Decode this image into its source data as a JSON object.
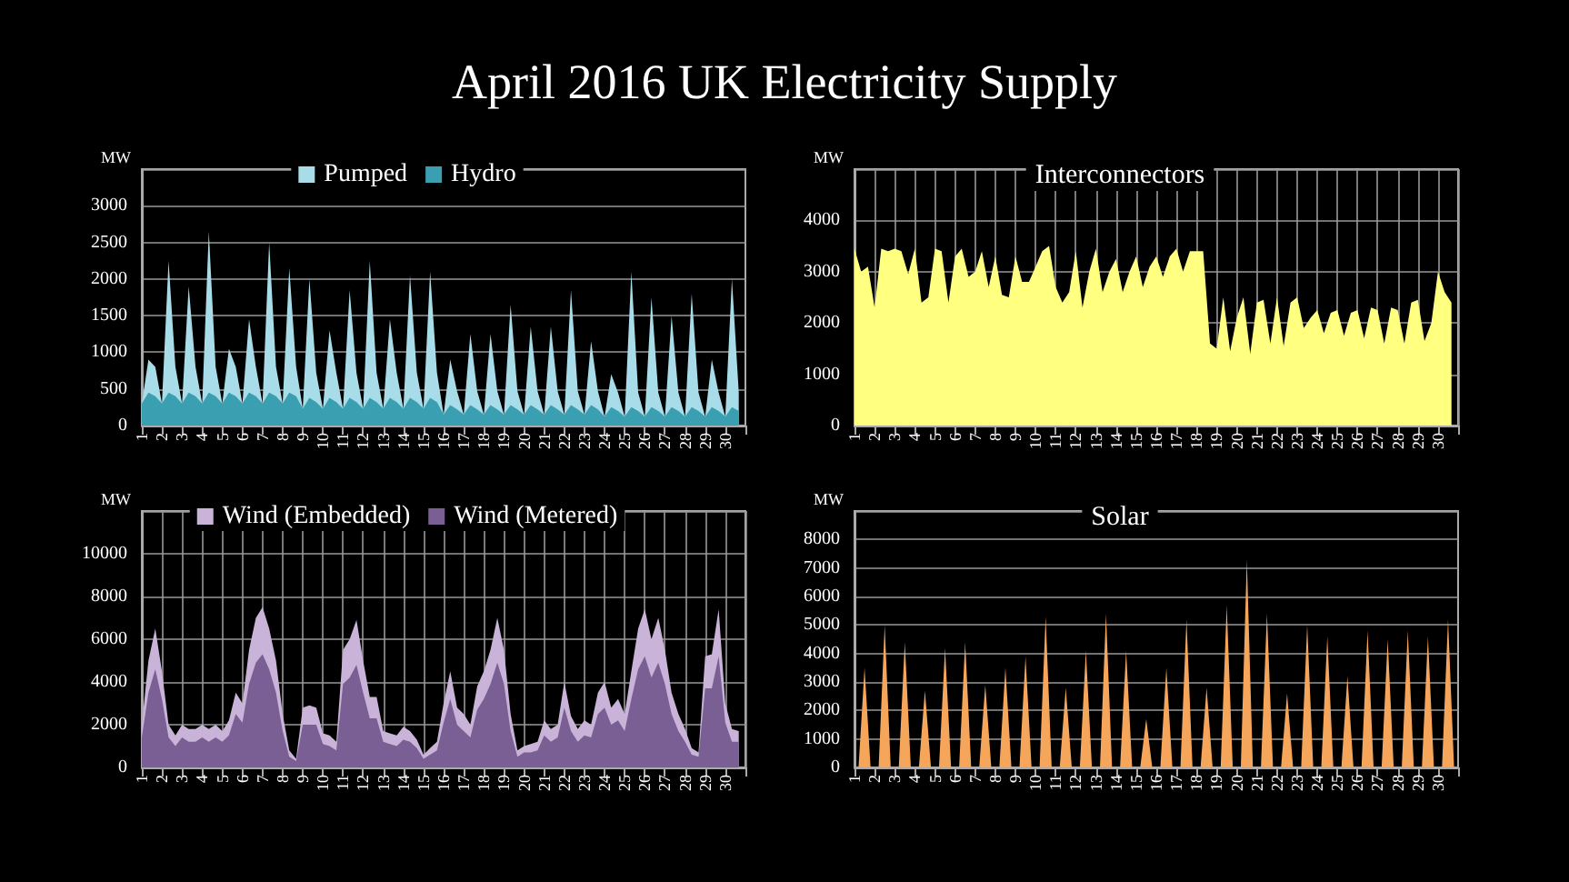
{
  "chart_data": [
    {
      "type": "other",
      "title": "April 2016 UK Electricity Supply"
    },
    {
      "type": "area",
      "ylabel": "MW",
      "stacked": true,
      "legend": "top",
      "grid": "y",
      "xlim": [
        1,
        31
      ],
      "xticks": [
        1,
        2,
        3,
        4,
        5,
        6,
        7,
        8,
        9,
        10,
        11,
        12,
        13,
        14,
        15,
        16,
        17,
        18,
        19,
        20,
        21,
        22,
        23,
        24,
        25,
        26,
        27,
        28,
        29,
        30
      ],
      "ylim": [
        0,
        3500
      ],
      "yticks": [
        0,
        500,
        1000,
        1500,
        2000,
        2500,
        3000
      ],
      "x": [
        1,
        1.33,
        1.67,
        2,
        2.33,
        2.67,
        3,
        3.33,
        3.67,
        4,
        4.33,
        4.67,
        5,
        5.33,
        5.67,
        6,
        6.33,
        6.67,
        7,
        7.33,
        7.67,
        8,
        8.33,
        8.67,
        9,
        9.33,
        9.67,
        10,
        10.33,
        10.67,
        11,
        11.33,
        11.67,
        12,
        12.33,
        12.67,
        13,
        13.33,
        13.67,
        14,
        14.33,
        14.67,
        15,
        15.33,
        15.67,
        16,
        16.33,
        16.67,
        17,
        17.33,
        17.67,
        18,
        18.33,
        18.67,
        19,
        19.33,
        19.67,
        20,
        20.33,
        20.67,
        21,
        21.33,
        21.67,
        22,
        22.33,
        22.67,
        23,
        23.33,
        23.67,
        24,
        24.33,
        24.67,
        25,
        25.33,
        25.67,
        26,
        26.33,
        26.67,
        27,
        27.33,
        27.67,
        28,
        28.33,
        28.67,
        29,
        29.33,
        29.67,
        30,
        30.33,
        30.67
      ],
      "series": [
        {
          "name": "Hydro",
          "color": "#3a9fb0",
          "values": [
            300,
            450,
            400,
            300,
            450,
            400,
            300,
            450,
            400,
            300,
            450,
            400,
            300,
            450,
            400,
            300,
            450,
            400,
            300,
            450,
            400,
            300,
            450,
            400,
            230,
            380,
            320,
            230,
            380,
            320,
            230,
            380,
            320,
            230,
            380,
            320,
            230,
            380,
            320,
            230,
            380,
            320,
            230,
            380,
            320,
            150,
            280,
            220,
            150,
            280,
            220,
            150,
            280,
            220,
            150,
            280,
            220,
            150,
            280,
            220,
            150,
            280,
            220,
            150,
            280,
            220,
            150,
            280,
            220,
            120,
            250,
            200,
            120,
            250,
            200,
            120,
            250,
            200,
            120,
            250,
            200,
            120,
            250,
            200,
            120,
            250,
            200,
            120,
            250,
            200
          ]
        },
        {
          "name": "Pumped",
          "color": "#a8dce8",
          "values": [
            0,
            450,
            400,
            0,
            1800,
            400,
            0,
            1450,
            400,
            0,
            2200,
            400,
            0,
            600,
            400,
            0,
            1000,
            400,
            0,
            2050,
            400,
            0,
            1700,
            400,
            0,
            1620,
            400,
            0,
            920,
            400,
            0,
            1470,
            400,
            0,
            1870,
            400,
            0,
            1070,
            400,
            0,
            1670,
            400,
            0,
            1720,
            400,
            0,
            620,
            250,
            0,
            970,
            250,
            0,
            970,
            250,
            0,
            1370,
            250,
            0,
            1070,
            250,
            0,
            1070,
            250,
            0,
            1570,
            250,
            0,
            870,
            250,
            0,
            450,
            250,
            0,
            1850,
            250,
            0,
            1500,
            250,
            0,
            1250,
            250,
            0,
            1550,
            250,
            0,
            650,
            250,
            0,
            1750,
            250
          ]
        }
      ]
    },
    {
      "type": "area",
      "title": "Interconnectors",
      "ylabel": "MW",
      "grid": true,
      "xlim": [
        1,
        31
      ],
      "xticks": [
        1,
        2,
        3,
        4,
        5,
        6,
        7,
        8,
        9,
        10,
        11,
        12,
        13,
        14,
        15,
        16,
        17,
        18,
        19,
        20,
        21,
        22,
        23,
        24,
        25,
        26,
        27,
        28,
        29,
        30
      ],
      "ylim": [
        0,
        5000
      ],
      "yticks": [
        0,
        1000,
        2000,
        3000,
        4000
      ],
      "x": [
        1,
        1.33,
        1.67,
        2,
        2.33,
        2.67,
        3,
        3.33,
        3.67,
        4,
        4.33,
        4.67,
        5,
        5.33,
        5.67,
        6,
        6.33,
        6.67,
        7,
        7.33,
        7.67,
        8,
        8.33,
        8.67,
        9,
        9.33,
        9.67,
        10,
        10.33,
        10.67,
        11,
        11.33,
        11.67,
        12,
        12.33,
        12.67,
        13,
        13.33,
        13.67,
        14,
        14.33,
        14.67,
        15,
        15.33,
        15.67,
        16,
        16.33,
        16.67,
        17,
        17.33,
        17.67,
        18,
        18.33,
        18.67,
        19,
        19.33,
        19.67,
        20,
        20.33,
        20.67,
        21,
        21.33,
        21.67,
        22,
        22.33,
        22.67,
        23,
        23.33,
        23.67,
        24,
        24.33,
        24.67,
        25,
        25.33,
        25.67,
        26,
        26.33,
        26.67,
        27,
        27.33,
        27.67,
        28,
        28.33,
        28.67,
        29,
        29.33,
        29.67,
        30,
        30.33,
        30.67
      ],
      "series": [
        {
          "color": "#ffff80",
          "values": [
            3450,
            3000,
            3100,
            2300,
            3450,
            3400,
            3450,
            3400,
            2950,
            3450,
            2400,
            2500,
            3450,
            3400,
            2400,
            3300,
            3450,
            2900,
            3000,
            3400,
            2700,
            3300,
            2550,
            2500,
            3300,
            2800,
            2800,
            3100,
            3400,
            3500,
            2700,
            2400,
            2600,
            3400,
            2300,
            3000,
            3450,
            2600,
            3000,
            3250,
            2600,
            3000,
            3300,
            2700,
            3100,
            3300,
            2900,
            3300,
            3450,
            3000,
            3400,
            3400,
            3400,
            1600,
            1500,
            2500,
            1450,
            2100,
            2500,
            1400,
            2400,
            2450,
            1600,
            2500,
            1550,
            2400,
            2500,
            1900,
            2100,
            2250,
            1800,
            2200,
            2250,
            1750,
            2200,
            2250,
            1700,
            2300,
            2250,
            1600,
            2300,
            2250,
            1600,
            2400,
            2450,
            1650,
            2000,
            3000,
            2600,
            2400
          ]
        }
      ]
    },
    {
      "type": "area",
      "ylabel": "MW",
      "stacked": true,
      "legend": "top",
      "grid": true,
      "xlim": [
        1,
        31
      ],
      "xticks": [
        1,
        2,
        3,
        4,
        5,
        6,
        7,
        8,
        9,
        10,
        11,
        12,
        13,
        14,
        15,
        16,
        17,
        18,
        19,
        20,
        21,
        22,
        23,
        24,
        25,
        26,
        27,
        28,
        29,
        30
      ],
      "ylim": [
        0,
        12000
      ],
      "yticks": [
        0,
        2000,
        4000,
        6000,
        8000,
        10000
      ],
      "x": [
        1,
        1.33,
        1.67,
        2,
        2.33,
        2.67,
        3,
        3.33,
        3.67,
        4,
        4.33,
        4.67,
        5,
        5.33,
        5.67,
        6,
        6.33,
        6.67,
        7,
        7.33,
        7.67,
        8,
        8.33,
        8.67,
        9,
        9.33,
        9.67,
        10,
        10.33,
        10.67,
        11,
        11.33,
        11.67,
        12,
        12.33,
        12.67,
        13,
        13.33,
        13.67,
        14,
        14.33,
        14.67,
        15,
        15.33,
        15.67,
        16,
        16.33,
        16.67,
        17,
        17.33,
        17.67,
        18,
        18.33,
        18.67,
        19,
        19.33,
        19.67,
        20,
        20.33,
        20.67,
        21,
        21.33,
        21.67,
        22,
        22.33,
        22.67,
        23,
        23.33,
        23.67,
        24,
        24.33,
        24.67,
        25,
        25.33,
        25.67,
        26,
        26.33,
        26.67,
        27,
        27.33,
        27.67,
        28,
        28.33,
        28.67,
        29,
        29.33,
        29.67,
        30,
        30.33,
        30.67
      ],
      "series": [
        {
          "name": "Wind (Metered)",
          "color": "#7a5f94",
          "values": [
            1400,
            3500,
            4600,
            3200,
            1400,
            1000,
            1400,
            1200,
            1200,
            1400,
            1200,
            1400,
            1200,
            1500,
            2500,
            2100,
            3900,
            4900,
            5300,
            4600,
            3500,
            1700,
            500,
            300,
            2000,
            2000,
            2000,
            1100,
            1000,
            800,
            3900,
            4200,
            4800,
            3500,
            2300,
            2300,
            1200,
            1100,
            1000,
            1300,
            1200,
            900,
            400,
            600,
            800,
            2100,
            3200,
            2000,
            1700,
            1400,
            2700,
            3200,
            3900,
            4900,
            3900,
            1700,
            500,
            700,
            700,
            800,
            1500,
            1200,
            1400,
            2800,
            1700,
            1200,
            1500,
            1400,
            2500,
            2800,
            2000,
            2200,
            1700,
            3200,
            4600,
            5200,
            4200,
            4900,
            3900,
            2500,
            1700,
            1200,
            600,
            500,
            3700,
            3700,
            5200,
            2100,
            1200,
            1200
          ]
        },
        {
          "name": "Wind (Embedded)",
          "color": "#c9b3d9",
          "values": [
            600,
            1500,
            1900,
            1300,
            600,
            500,
            600,
            600,
            600,
            600,
            600,
            600,
            500,
            700,
            1000,
            900,
            1600,
            2100,
            2200,
            1900,
            1500,
            800,
            300,
            100,
            800,
            900,
            800,
            500,
            500,
            400,
            1600,
            1800,
            2100,
            1500,
            1000,
            1000,
            500,
            500,
            500,
            600,
            500,
            400,
            200,
            300,
            400,
            900,
            1300,
            800,
            800,
            600,
            1100,
            1300,
            1600,
            2100,
            1600,
            800,
            300,
            300,
            400,
            400,
            700,
            600,
            600,
            1200,
            700,
            600,
            700,
            600,
            1000,
            1200,
            800,
            1000,
            800,
            1300,
            1900,
            2200,
            1800,
            2100,
            1600,
            1000,
            800,
            600,
            300,
            200,
            1500,
            1600,
            2200,
            900,
            600,
            500
          ]
        }
      ]
    },
    {
      "type": "area",
      "title": "Solar",
      "ylabel": "MW",
      "grid": "y",
      "xlim": [
        1,
        31
      ],
      "xticks": [
        1,
        2,
        3,
        4,
        5,
        6,
        7,
        8,
        9,
        10,
        11,
        12,
        13,
        14,
        15,
        16,
        17,
        18,
        19,
        20,
        21,
        22,
        23,
        24,
        25,
        26,
        27,
        28,
        29,
        30
      ],
      "ylim": [
        0,
        9000
      ],
      "yticks": [
        0,
        1000,
        2000,
        3000,
        4000,
        5000,
        6000,
        7000,
        8000
      ],
      "x": [
        1.2,
        1.5,
        1.8,
        2.2,
        2.5,
        2.8,
        3.2,
        3.5,
        3.8,
        4.2,
        4.5,
        4.8,
        5.2,
        5.5,
        5.8,
        6.2,
        6.5,
        6.8,
        7.2,
        7.5,
        7.8,
        8.2,
        8.5,
        8.8,
        9.2,
        9.5,
        9.8,
        10.2,
        10.5,
        10.8,
        11.2,
        11.5,
        11.8,
        12.2,
        12.5,
        12.8,
        13.2,
        13.5,
        13.8,
        14.2,
        14.5,
        14.8,
        15.2,
        15.5,
        15.8,
        16.2,
        16.5,
        16.8,
        17.2,
        17.5,
        17.8,
        18.2,
        18.5,
        18.8,
        19.2,
        19.5,
        19.8,
        20.2,
        20.5,
        20.8,
        21.2,
        21.5,
        21.8,
        22.2,
        22.5,
        22.8,
        23.2,
        23.5,
        23.8,
        24.2,
        24.5,
        24.8,
        25.2,
        25.5,
        25.8,
        26.2,
        26.5,
        26.8,
        27.2,
        27.5,
        27.8,
        28.2,
        28.5,
        28.8,
        29.2,
        29.5,
        29.8,
        30.2,
        30.5,
        30.8
      ],
      "series": [
        {
          "color": "#f5a65b",
          "values": [
            0,
            3500,
            0,
            0,
            5000,
            0,
            0,
            4400,
            0,
            0,
            2700,
            0,
            0,
            4200,
            0,
            0,
            4400,
            0,
            0,
            2900,
            0,
            0,
            3500,
            0,
            0,
            3900,
            0,
            0,
            5300,
            0,
            0,
            2800,
            0,
            0,
            4100,
            0,
            0,
            5400,
            0,
            0,
            4100,
            0,
            0,
            1700,
            0,
            0,
            3500,
            0,
            0,
            5200,
            0,
            0,
            2800,
            0,
            0,
            5700,
            0,
            0,
            7300,
            0,
            0,
            5400,
            0,
            0,
            2600,
            0,
            0,
            5000,
            0,
            0,
            4600,
            0,
            0,
            3200,
            0,
            0,
            4800,
            0,
            0,
            4500,
            0,
            0,
            4800,
            0,
            0,
            4600,
            0,
            0,
            5200,
            0
          ]
        }
      ]
    }
  ]
}
